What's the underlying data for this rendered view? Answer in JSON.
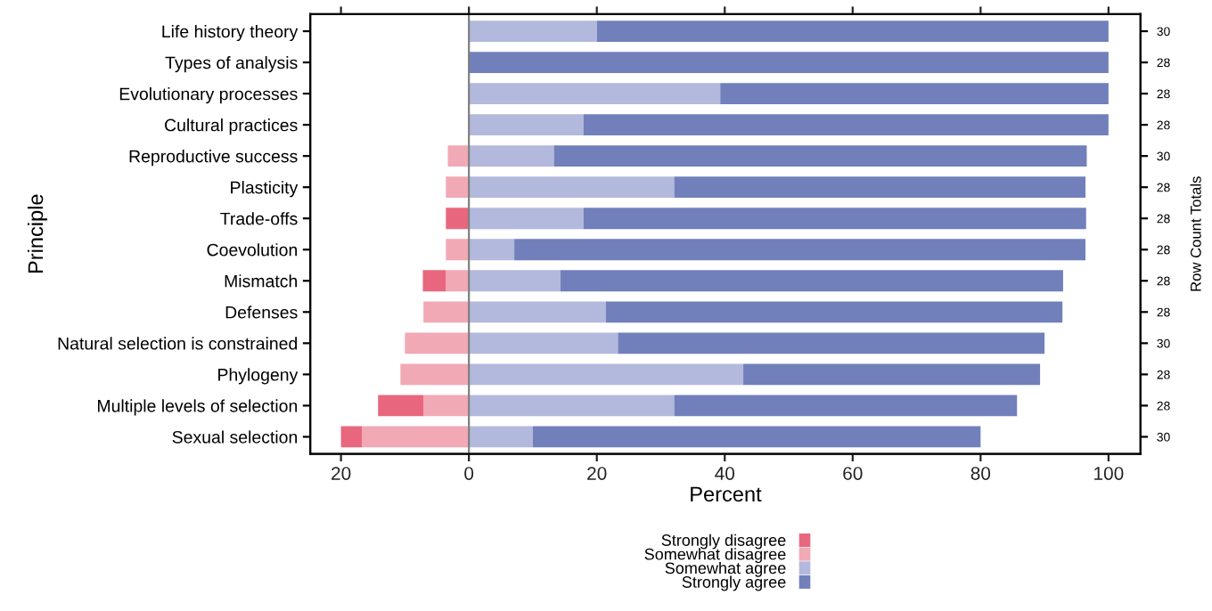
{
  "chart_data": {
    "type": "bar",
    "orientation": "horizontal",
    "stacked": true,
    "xlabel": "Percent",
    "ylabel": "Principle",
    "y2label": "Row Count Totals",
    "categories": [
      "Life history theory",
      "Types of analysis",
      "Evolutionary processes",
      "Cultural practices",
      "Reproductive success",
      "Plasticity",
      "Trade-offs",
      "Coevolution",
      "Mismatch",
      "Defenses",
      "Natural selection is constrained",
      "Phylogeny",
      "Multiple levels of selection",
      "Sexual selection"
    ],
    "series": [
      {
        "name": "Strongly disagree",
        "color": "#e8677f",
        "values": [
          0,
          0,
          0,
          0,
          0,
          0,
          -3.6,
          0,
          -3.6,
          0,
          0,
          0,
          -7.1,
          -3.3
        ]
      },
      {
        "name": "Somewhat disagree",
        "color": "#f1a9b6",
        "values": [
          0,
          0,
          0,
          0,
          -3.3,
          -3.6,
          0,
          -3.6,
          -3.6,
          -7.1,
          -10,
          -10.7,
          -7.1,
          -16.7
        ]
      },
      {
        "name": "Somewhat agree",
        "color": "#b3b9dc",
        "values": [
          20,
          0,
          39.3,
          17.9,
          13.3,
          32.1,
          17.9,
          7.1,
          14.3,
          21.4,
          23.3,
          42.9,
          32.1,
          10
        ]
      },
      {
        "name": "Strongly agree",
        "color": "#7180bb",
        "values": [
          80,
          100,
          60.7,
          82.1,
          83.3,
          64.3,
          78.6,
          89.3,
          78.6,
          71.4,
          66.7,
          46.4,
          53.6,
          70
        ]
      }
    ],
    "y2_categories": [
      "30",
      "28",
      "28",
      "28",
      "30",
      "28",
      "28",
      "28",
      "28",
      "28",
      "30",
      "28",
      "28",
      "30"
    ],
    "xlim": [
      -24.8,
      105
    ],
    "xticks": [
      {
        "value": -20,
        "label": "20"
      },
      0,
      20,
      40,
      60,
      80,
      100
    ],
    "ref_lines": [
      {
        "axis": "x",
        "value": 0,
        "color": "#808080"
      }
    ],
    "grid": false,
    "legend": "bottom"
  }
}
